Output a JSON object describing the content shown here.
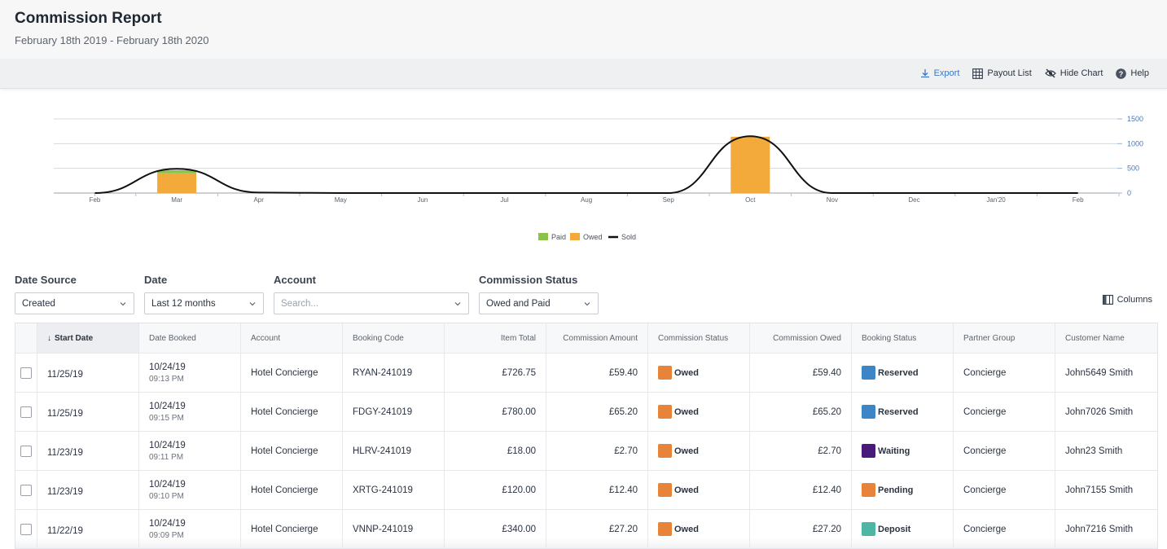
{
  "header": {
    "title": "Commission Report",
    "date_range": "February 18th 2019 - February 18th 2020"
  },
  "toolbar": {
    "export_label": "Export",
    "payout_label": "Payout List",
    "hide_chart_label": "Hide Chart",
    "help_label": "Help"
  },
  "chart_data": {
    "type": "bar",
    "categories": [
      "Feb",
      "Mar",
      "Apr",
      "May",
      "Jun",
      "Jul",
      "Aug",
      "Sep",
      "Oct",
      "Nov",
      "Dec",
      "Jan'20",
      "Feb"
    ],
    "series": [
      {
        "name": "Paid",
        "type": "bar",
        "color": "#8bc34a",
        "values": [
          0,
          60,
          0,
          0,
          0,
          0,
          0,
          0,
          0,
          0,
          0,
          0,
          0
        ]
      },
      {
        "name": "Owed",
        "type": "bar",
        "color": "#f4a93b",
        "values": [
          0,
          400,
          0,
          0,
          0,
          0,
          0,
          0,
          1140,
          0,
          0,
          0,
          0
        ]
      },
      {
        "name": "Sold",
        "type": "line",
        "color": "#111111",
        "values": [
          0,
          490,
          10,
          0,
          0,
          0,
          0,
          0,
          1150,
          0,
          0,
          0,
          0
        ]
      }
    ],
    "y_ticks": [
      0,
      500,
      1000,
      1500
    ],
    "ylim": [
      0,
      1500
    ],
    "legend_position": "bottom-center",
    "grid": true
  },
  "filters": {
    "date_source": {
      "label": "Date Source",
      "value": "Created"
    },
    "date": {
      "label": "Date",
      "value": "Last 12 months"
    },
    "account": {
      "label": "Account",
      "placeholder": "Search..."
    },
    "commission_status": {
      "label": "Commission Status",
      "value": "Owed and Paid"
    },
    "columns_label": "Columns"
  },
  "table": {
    "headers": [
      "Start Date",
      "Date Booked",
      "Account",
      "Booking Code",
      "Item Total",
      "Commission Amount",
      "Commission Status",
      "Commission Owed",
      "Booking Status",
      "Partner Group",
      "Customer Name"
    ],
    "rows": [
      {
        "start": "11/25/19",
        "booked_date": "10/24/19",
        "booked_time": "09:13 PM",
        "account": "Hotel Concierge",
        "code": "RYAN-241019",
        "item_total": "£726.75",
        "commission": "£59.40",
        "comm_status": "Owed",
        "comm_color": "#e8843a",
        "owed": "£59.40",
        "booking_status": "Reserved",
        "booking_color": "#3d86c6",
        "partner": "Concierge",
        "customer": "John5649 Smith"
      },
      {
        "start": "11/25/19",
        "booked_date": "10/24/19",
        "booked_time": "09:15 PM",
        "account": "Hotel Concierge",
        "code": "FDGY-241019",
        "item_total": "£780.00",
        "commission": "£65.20",
        "comm_status": "Owed",
        "comm_color": "#e8843a",
        "owed": "£65.20",
        "booking_status": "Reserved",
        "booking_color": "#3d86c6",
        "partner": "Concierge",
        "customer": "John7026 Smith"
      },
      {
        "start": "11/23/19",
        "booked_date": "10/24/19",
        "booked_time": "09:11 PM",
        "account": "Hotel Concierge",
        "code": "HLRV-241019",
        "item_total": "£18.00",
        "commission": "£2.70",
        "comm_status": "Owed",
        "comm_color": "#e8843a",
        "owed": "£2.70",
        "booking_status": "Waiting",
        "booking_color": "#4a1a7a",
        "partner": "Concierge",
        "customer": "John23 Smith"
      },
      {
        "start": "11/23/19",
        "booked_date": "10/24/19",
        "booked_time": "09:10 PM",
        "account": "Hotel Concierge",
        "code": "XRTG-241019",
        "item_total": "£120.00",
        "commission": "£12.40",
        "comm_status": "Owed",
        "comm_color": "#e8843a",
        "owed": "£12.40",
        "booking_status": "Pending",
        "booking_color": "#e8843a",
        "partner": "Concierge",
        "customer": "John7155 Smith"
      },
      {
        "start": "11/22/19",
        "booked_date": "10/24/19",
        "booked_time": "09:09 PM",
        "account": "Hotel Concierge",
        "code": "VNNP-241019",
        "item_total": "£340.00",
        "commission": "£27.20",
        "comm_status": "Owed",
        "comm_color": "#e8843a",
        "owed": "£27.20",
        "booking_status": "Deposit",
        "booking_color": "#4db6a5",
        "partner": "Concierge",
        "customer": "John7216 Smith"
      }
    ]
  }
}
